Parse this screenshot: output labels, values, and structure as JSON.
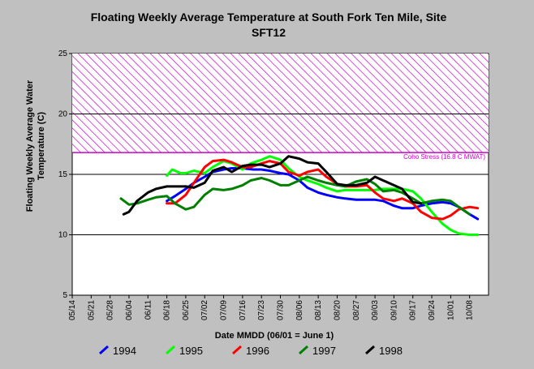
{
  "chart_data": {
    "type": "line",
    "title": "Floating Weekly Average Temperature at South Fork Ten Mile, Site",
    "subtitle": "SFT12",
    "xlabel": "Date MMDD (06/01 = June 1)",
    "ylabel_line1": "Floating Weekly Average Water",
    "ylabel_line2": "Temperature (C)",
    "x_ticks": [
      "05/14",
      "05/21",
      "05/28",
      "06/04",
      "06/11",
      "06/18",
      "06/25",
      "07/02",
      "07/09",
      "07/16",
      "07/23",
      "07/30",
      "08/06",
      "08/13",
      "08/20",
      "08/27",
      "09/03",
      "09/10",
      "09/17",
      "09/24",
      "10/01",
      "10/08"
    ],
    "y_ticks": [
      5,
      10,
      15,
      20,
      25
    ],
    "ylim": [
      5,
      25
    ],
    "x_range_dates": [
      "05/14",
      "10/15"
    ],
    "grid_lines_y": [
      10,
      15,
      20
    ],
    "threshold": {
      "value": 16.8,
      "label": "Coho Stress (16.8 C MWAT)",
      "color": "#cc00cc",
      "fill": "hatched"
    },
    "legend_position": "bottom",
    "series": [
      {
        "name": "1994",
        "color": "#0000ff",
        "points": [
          [
            "06/18",
            12.8
          ],
          [
            "06/21",
            13.2
          ],
          [
            "06/25",
            13.8
          ],
          [
            "06/28",
            14.3
          ],
          [
            "07/02",
            14.8
          ],
          [
            "07/05",
            15.2
          ],
          [
            "07/09",
            15.4
          ],
          [
            "07/12",
            15.5
          ],
          [
            "07/16",
            15.5
          ],
          [
            "07/20",
            15.4
          ],
          [
            "07/23",
            15.4
          ],
          [
            "07/26",
            15.3
          ],
          [
            "07/30",
            15.1
          ],
          [
            "08/02",
            15.0
          ],
          [
            "08/06",
            14.5
          ],
          [
            "08/09",
            13.9
          ],
          [
            "08/13",
            13.5
          ],
          [
            "08/16",
            13.3
          ],
          [
            "08/20",
            13.1
          ],
          [
            "08/23",
            13.0
          ],
          [
            "08/27",
            12.9
          ],
          [
            "08/31",
            12.9
          ],
          [
            "09/03",
            12.9
          ],
          [
            "09/06",
            12.8
          ],
          [
            "09/10",
            12.4
          ],
          [
            "09/13",
            12.2
          ],
          [
            "09/17",
            12.2
          ],
          [
            "09/20",
            12.4
          ],
          [
            "09/24",
            12.6
          ],
          [
            "09/28",
            12.7
          ],
          [
            "10/01",
            12.6
          ],
          [
            "10/04",
            12.3
          ],
          [
            "10/08",
            11.7
          ],
          [
            "10/11",
            11.3
          ]
        ]
      },
      {
        "name": "1995",
        "color": "#00ff00",
        "points": [
          [
            "06/18",
            14.9
          ],
          [
            "06/20",
            15.4
          ],
          [
            "06/23",
            15.1
          ],
          [
            "06/25",
            15.1
          ],
          [
            "06/28",
            15.3
          ],
          [
            "07/02",
            15.1
          ],
          [
            "07/05",
            15.6
          ],
          [
            "07/09",
            16.1
          ],
          [
            "07/12",
            15.9
          ],
          [
            "07/16",
            15.4
          ],
          [
            "07/19",
            15.9
          ],
          [
            "07/23",
            16.2
          ],
          [
            "07/26",
            16.5
          ],
          [
            "07/30",
            16.2
          ],
          [
            "08/02",
            15.5
          ],
          [
            "08/06",
            14.8
          ],
          [
            "08/09",
            14.5
          ],
          [
            "08/13",
            14.2
          ],
          [
            "08/16",
            13.9
          ],
          [
            "08/20",
            13.6
          ],
          [
            "08/23",
            13.7
          ],
          [
            "08/27",
            13.7
          ],
          [
            "08/31",
            13.7
          ],
          [
            "09/03",
            13.7
          ],
          [
            "09/06",
            13.8
          ],
          [
            "09/10",
            13.8
          ],
          [
            "09/13",
            13.8
          ],
          [
            "09/17",
            13.6
          ],
          [
            "09/20",
            13.0
          ],
          [
            "09/24",
            11.9
          ],
          [
            "09/28",
            10.9
          ],
          [
            "10/01",
            10.4
          ],
          [
            "10/04",
            10.1
          ],
          [
            "10/08",
            10.0
          ],
          [
            "10/11",
            10.0
          ]
        ]
      },
      {
        "name": "1996",
        "color": "#ff0000",
        "points": [
          [
            "06/18",
            12.6
          ],
          [
            "06/21",
            12.6
          ],
          [
            "06/25",
            13.3
          ],
          [
            "06/28",
            14.3
          ],
          [
            "07/02",
            15.6
          ],
          [
            "07/05",
            16.1
          ],
          [
            "07/09",
            16.2
          ],
          [
            "07/12",
            16.0
          ],
          [
            "07/16",
            15.6
          ],
          [
            "07/19",
            15.6
          ],
          [
            "07/23",
            15.9
          ],
          [
            "07/26",
            16.1
          ],
          [
            "07/30",
            15.9
          ],
          [
            "08/02",
            15.2
          ],
          [
            "08/06",
            14.9
          ],
          [
            "08/09",
            15.2
          ],
          [
            "08/13",
            15.4
          ],
          [
            "08/16",
            14.8
          ],
          [
            "08/20",
            14.2
          ],
          [
            "08/23",
            14.0
          ],
          [
            "08/27",
            14.0
          ],
          [
            "08/31",
            14.1
          ],
          [
            "09/03",
            13.5
          ],
          [
            "09/06",
            13.0
          ],
          [
            "09/10",
            12.8
          ],
          [
            "09/13",
            13.0
          ],
          [
            "09/17",
            12.6
          ],
          [
            "09/20",
            11.9
          ],
          [
            "09/24",
            11.4
          ],
          [
            "09/28",
            11.3
          ],
          [
            "10/01",
            11.6
          ],
          [
            "10/04",
            12.1
          ],
          [
            "10/08",
            12.3
          ],
          [
            "10/11",
            12.2
          ]
        ]
      },
      {
        "name": "1997",
        "color": "#008000",
        "points": [
          [
            "06/01",
            13.0
          ],
          [
            "06/04",
            12.5
          ],
          [
            "06/07",
            12.6
          ],
          [
            "06/11",
            12.9
          ],
          [
            "06/14",
            13.1
          ],
          [
            "06/18",
            13.2
          ],
          [
            "06/21",
            12.6
          ],
          [
            "06/25",
            12.1
          ],
          [
            "06/28",
            12.3
          ],
          [
            "07/02",
            13.3
          ],
          [
            "07/05",
            13.8
          ],
          [
            "07/09",
            13.7
          ],
          [
            "07/12",
            13.8
          ],
          [
            "07/16",
            14.1
          ],
          [
            "07/19",
            14.5
          ],
          [
            "07/23",
            14.7
          ],
          [
            "07/26",
            14.5
          ],
          [
            "07/30",
            14.1
          ],
          [
            "08/02",
            14.1
          ],
          [
            "08/06",
            14.5
          ],
          [
            "08/09",
            14.8
          ],
          [
            "08/13",
            14.5
          ],
          [
            "08/16",
            14.3
          ],
          [
            "08/20",
            14.1
          ],
          [
            "08/23",
            14.0
          ],
          [
            "08/27",
            14.4
          ],
          [
            "08/31",
            14.6
          ],
          [
            "09/03",
            14.2
          ],
          [
            "09/06",
            13.6
          ],
          [
            "09/10",
            13.7
          ],
          [
            "09/13",
            13.5
          ],
          [
            "09/17",
            13.0
          ],
          [
            "09/20",
            12.6
          ],
          [
            "09/24",
            12.8
          ],
          [
            "09/28",
            12.9
          ],
          [
            "10/01",
            12.8
          ],
          [
            "10/04",
            12.3
          ],
          [
            "10/08",
            11.7
          ]
        ]
      },
      {
        "name": "1998",
        "color": "#000000",
        "points": [
          [
            "06/02",
            11.7
          ],
          [
            "06/04",
            11.9
          ],
          [
            "06/07",
            12.8
          ],
          [
            "06/11",
            13.5
          ],
          [
            "06/14",
            13.8
          ],
          [
            "06/18",
            14.0
          ],
          [
            "06/21",
            14.0
          ],
          [
            "06/25",
            14.0
          ],
          [
            "06/28",
            13.9
          ],
          [
            "07/02",
            14.3
          ],
          [
            "07/05",
            15.3
          ],
          [
            "07/09",
            15.6
          ],
          [
            "07/12",
            15.2
          ],
          [
            "07/16",
            15.7
          ],
          [
            "07/19",
            15.8
          ],
          [
            "07/23",
            15.8
          ],
          [
            "07/26",
            15.6
          ],
          [
            "07/30",
            15.9
          ],
          [
            "08/02",
            16.5
          ],
          [
            "08/06",
            16.3
          ],
          [
            "08/09",
            16.0
          ],
          [
            "08/13",
            15.9
          ],
          [
            "08/16",
            15.2
          ],
          [
            "08/20",
            14.2
          ],
          [
            "08/23",
            14.1
          ],
          [
            "08/27",
            14.1
          ],
          [
            "08/31",
            14.3
          ],
          [
            "09/03",
            14.8
          ],
          [
            "09/06",
            14.5
          ],
          [
            "09/10",
            14.1
          ],
          [
            "09/13",
            13.8
          ],
          [
            "09/17",
            12.7
          ],
          [
            "09/20",
            12.6
          ]
        ]
      }
    ]
  }
}
